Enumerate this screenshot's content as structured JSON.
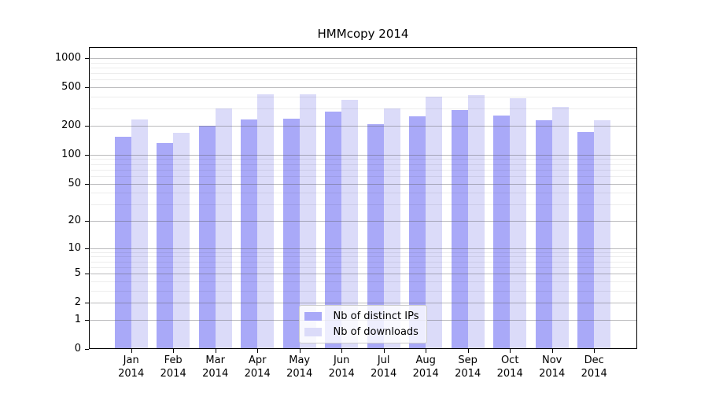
{
  "chart_data": {
    "type": "bar",
    "title": "HMMcopy 2014",
    "categories": [
      "Jan",
      "Feb",
      "Mar",
      "Apr",
      "May",
      "Jun",
      "Jul",
      "Aug",
      "Sep",
      "Oct",
      "Nov",
      "Dec"
    ],
    "year": "2014",
    "series": [
      {
        "name": "Nb of distinct IPs",
        "color": "#a9a9f8",
        "values": [
          153,
          133,
          200,
          233,
          236,
          280,
          209,
          249,
          293,
          255,
          229,
          172
        ]
      },
      {
        "name": "Nb of downloads",
        "color": "#dbdbf9",
        "values": [
          232,
          170,
          301,
          422,
          422,
          372,
          304,
          401,
          416,
          389,
          314,
          230
        ]
      }
    ],
    "y_scale": "log10(1+y)",
    "y_ticks": [
      0,
      1,
      2,
      5,
      10,
      20,
      50,
      100,
      200,
      500,
      1000
    ],
    "ylim": [
      0,
      1300
    ],
    "xlabel": "",
    "ylabel": "",
    "grid": {
      "horizontal_major": true,
      "horizontal_minor": true,
      "drawn_over_bars": true
    },
    "legend_position": "lower center",
    "frame_color": "#000000",
    "background_color": "#ffffff"
  }
}
